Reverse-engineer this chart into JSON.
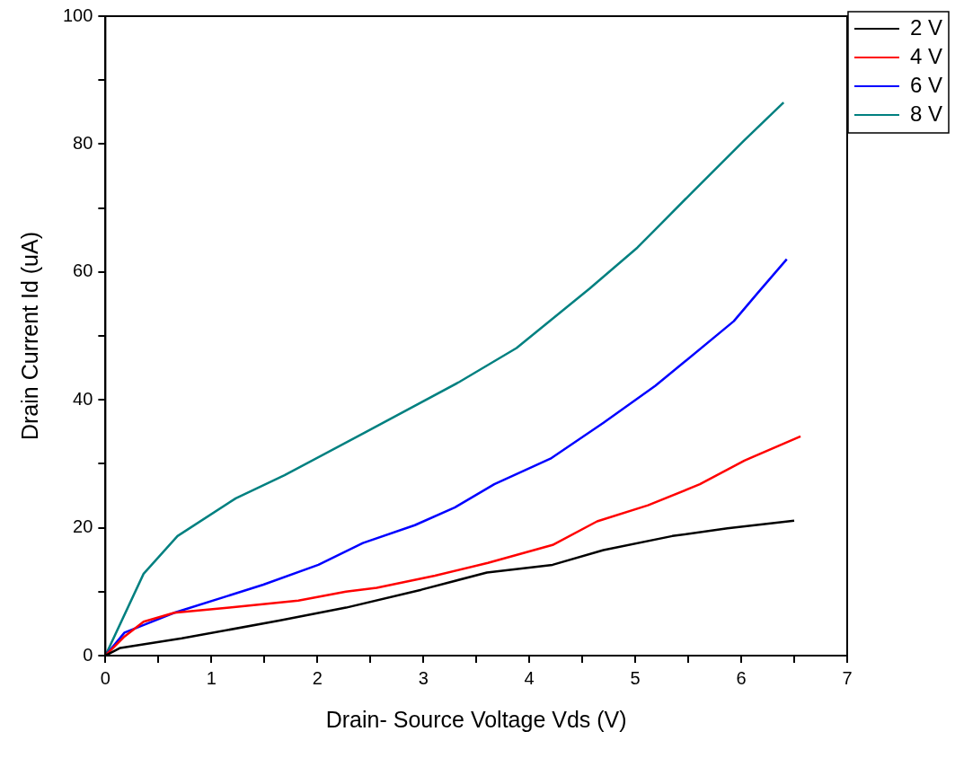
{
  "chart_data": {
    "type": "line",
    "xlabel": "Drain- Source Voltage Vds (V)",
    "ylabel": "Drain Current Id (uA)",
    "xlim": [
      0,
      7
    ],
    "ylim": [
      0,
      100
    ],
    "xticks": [
      0,
      {
        "value": 0.5,
        "label": null
      },
      1,
      {
        "value": 1.5,
        "label": null
      },
      2,
      {
        "value": 2.5,
        "label": null
      },
      3,
      {
        "value": 3.5,
        "label": null
      },
      4,
      {
        "value": 4.5,
        "label": null
      },
      5,
      {
        "value": 5.5,
        "label": null
      },
      6,
      {
        "value": 6.5,
        "label": null
      },
      7
    ],
    "yticks": [
      0,
      {
        "value": 10,
        "label": null
      },
      20,
      {
        "value": 30,
        "label": null
      },
      40,
      {
        "value": 50,
        "label": null
      },
      60,
      {
        "value": 70,
        "label": null
      },
      80,
      {
        "value": 90,
        "label": null
      },
      100
    ],
    "grid": false,
    "legend": "top right",
    "line_style": "solid",
    "series": [
      {
        "name": "2 V",
        "color": "#000000",
        "x": [
          0,
          0.14,
          0.72,
          1.65,
          2.27,
          2.98,
          3.6,
          4.22,
          4.7,
          5.35,
          5.87,
          6.5
        ],
        "values": [
          0,
          1.2,
          2.7,
          5.5,
          7.5,
          10.3,
          13,
          14.2,
          16.5,
          18.7,
          19.9,
          21.1
        ]
      },
      {
        "name": "4 V",
        "color": "#ff0000",
        "x": [
          0,
          0.18,
          0.36,
          0.65,
          1.17,
          1.82,
          2.27,
          2.56,
          3.11,
          3.61,
          4.22,
          4.64,
          5.12,
          5.61,
          6.03,
          6.56
        ],
        "values": [
          0,
          3,
          5.3,
          6.7,
          7.5,
          8.6,
          10,
          10.6,
          12.5,
          14.5,
          17.3,
          21,
          23.5,
          26.8,
          30.5,
          34.3
        ]
      },
      {
        "name": "6 V",
        "color": "#0000ff",
        "x": [
          0,
          0.18,
          0.65,
          1.49,
          2.01,
          2.43,
          2.92,
          3.3,
          3.67,
          4.2,
          4.7,
          5.19,
          5.93,
          6.16,
          6.43
        ],
        "values": [
          0,
          3.6,
          6.7,
          11.1,
          14.2,
          17.6,
          20.4,
          23.2,
          26.8,
          30.8,
          36.4,
          42.2,
          52.3,
          56.8,
          62
        ]
      },
      {
        "name": "8 V",
        "color": "#008080",
        "x": [
          0,
          0.36,
          0.68,
          1.23,
          1.69,
          2.46,
          3.34,
          3.88,
          4.57,
          5.02,
          5.54,
          6.03,
          6.4
        ],
        "values": [
          0,
          12.8,
          18.7,
          24.6,
          28.2,
          35,
          42.8,
          48.1,
          57.4,
          63.8,
          72.5,
          80.6,
          86.5
        ]
      }
    ]
  }
}
